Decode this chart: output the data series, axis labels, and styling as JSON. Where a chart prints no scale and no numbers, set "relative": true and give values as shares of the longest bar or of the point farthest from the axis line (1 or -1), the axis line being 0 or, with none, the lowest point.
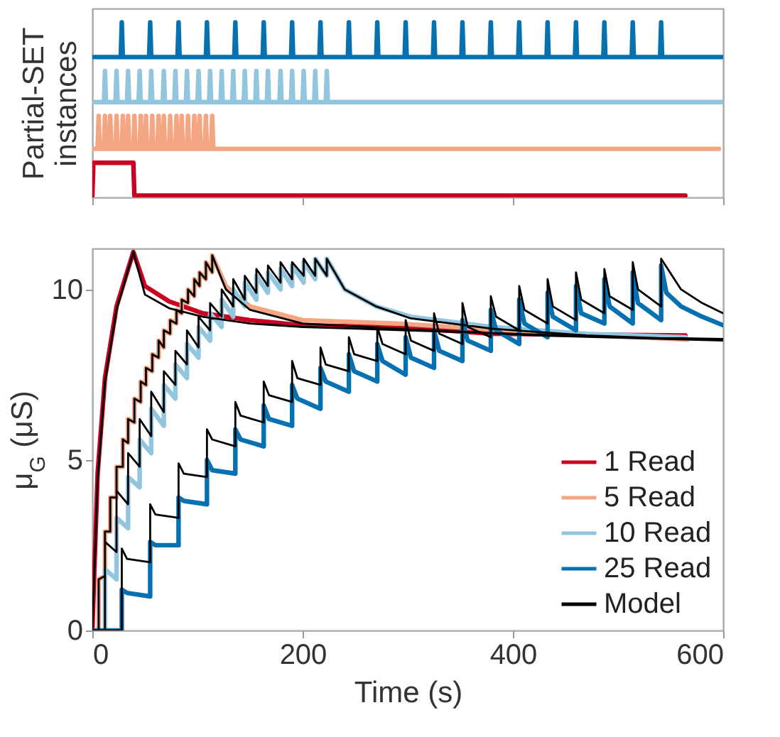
{
  "chart_data": [
    {
      "type": "line",
      "relative": true,
      "ylabel": "Partial-SET instances",
      "xlim": [
        0,
        600
      ],
      "xticks": [
        0,
        200,
        400,
        600
      ],
      "tick_labels": false,
      "series": [
        {
          "color": "#0571b0",
          "x": [
            0,
            27,
            28,
            29,
            54,
            55,
            56,
            81,
            82,
            83,
            108,
            109,
            110,
            135,
            136,
            137,
            162,
            163,
            164,
            189,
            190,
            191,
            216,
            217,
            218,
            243,
            244,
            245,
            270,
            271,
            272,
            297,
            298,
            299,
            324,
            325,
            326,
            351,
            352,
            353,
            378,
            379,
            380,
            405,
            406,
            407,
            432,
            433,
            434,
            459,
            460,
            461,
            486,
            487,
            488,
            513,
            514,
            515,
            540,
            541,
            542,
            600
          ],
          "values": [
            0.8,
            0.8,
            1,
            0.8,
            0.8,
            1,
            0.8,
            0.8,
            1,
            0.8,
            0.8,
            1,
            0.8,
            0.8,
            1,
            0.8,
            0.8,
            1,
            0.8,
            0.8,
            1,
            0.8,
            0.8,
            1,
            0.8,
            0.8,
            1,
            0.8,
            0.8,
            1,
            0.8,
            0.8,
            1,
            0.8,
            0.8,
            1,
            0.8,
            0.8,
            1,
            0.8,
            0.8,
            1,
            0.8,
            0.8,
            1,
            0.8,
            0.8,
            1,
            0.8,
            0.8,
            1,
            0.8,
            0.8,
            1,
            0.8,
            0.8,
            1,
            0.8,
            0.8,
            1,
            0.8,
            0.8
          ]
        },
        {
          "color": "#92c5de",
          "x": [
            0,
            11,
            12,
            13,
            22,
            23,
            24,
            33,
            34,
            35,
            44,
            45,
            46,
            55,
            56,
            57,
            67,
            68,
            69,
            78,
            79,
            80,
            89,
            90,
            91,
            100,
            101,
            102,
            111,
            112,
            113,
            122,
            123,
            124,
            133,
            134,
            135,
            144,
            145,
            146,
            155,
            156,
            157,
            166,
            167,
            168,
            178,
            179,
            180,
            189,
            190,
            191,
            200,
            201,
            202,
            211,
            212,
            213,
            222,
            223,
            224,
            600
          ],
          "values": [
            0.54,
            0.54,
            0.72,
            0.54,
            0.54,
            0.72,
            0.54,
            0.54,
            0.72,
            0.54,
            0.54,
            0.72,
            0.54,
            0.54,
            0.72,
            0.54,
            0.54,
            0.72,
            0.54,
            0.54,
            0.72,
            0.54,
            0.54,
            0.72,
            0.54,
            0.54,
            0.72,
            0.54,
            0.54,
            0.72,
            0.54,
            0.54,
            0.72,
            0.54,
            0.54,
            0.72,
            0.54,
            0.54,
            0.72,
            0.54,
            0.54,
            0.72,
            0.54,
            0.54,
            0.72,
            0.54,
            0.54,
            0.72,
            0.54,
            0.54,
            0.72,
            0.54,
            0.54,
            0.72,
            0.54,
            0.54,
            0.72,
            0.54,
            0.54,
            0.72,
            0.54,
            0.54
          ]
        },
        {
          "color": "#f4a582",
          "x": [
            0,
            5,
            6,
            7,
            11,
            12,
            13,
            16,
            17,
            18,
            22,
            23,
            24,
            28,
            29,
            30,
            33,
            34,
            35,
            39,
            40,
            41,
            45,
            46,
            47,
            50,
            51,
            52,
            56,
            57,
            58,
            62,
            63,
            64,
            67,
            68,
            69,
            73,
            74,
            75,
            79,
            80,
            81,
            84,
            85,
            86,
            90,
            91,
            92,
            96,
            97,
            98,
            101,
            102,
            103,
            107,
            108,
            109,
            113,
            114,
            115,
            596
          ],
          "values": [
            0.27,
            0.27,
            0.46,
            0.27,
            0.27,
            0.46,
            0.27,
            0.27,
            0.46,
            0.27,
            0.27,
            0.46,
            0.27,
            0.27,
            0.46,
            0.27,
            0.27,
            0.46,
            0.27,
            0.27,
            0.46,
            0.27,
            0.27,
            0.46,
            0.27,
            0.27,
            0.46,
            0.27,
            0.27,
            0.46,
            0.27,
            0.27,
            0.46,
            0.27,
            0.27,
            0.46,
            0.27,
            0.27,
            0.46,
            0.27,
            0.27,
            0.46,
            0.27,
            0.27,
            0.46,
            0.27,
            0.27,
            0.46,
            0.27,
            0.27,
            0.46,
            0.27,
            0.27,
            0.46,
            0.27,
            0.27,
            0.46,
            0.27,
            0.27,
            0.46,
            0.27,
            0.27
          ]
        },
        {
          "color": "#ca0020",
          "x": [
            0,
            1,
            39,
            40,
            564
          ],
          "values": [
            0,
            0.19,
            0.19,
            0,
            0
          ]
        }
      ]
    },
    {
      "type": "line",
      "xlabel": "Time (s)",
      "ylabel": "μ$_{G}$ (μS)",
      "xlim": [
        0,
        600
      ],
      "xticks": [
        0,
        200,
        400,
        600
      ],
      "ylim": [
        0,
        11.2
      ],
      "yticks": [
        0,
        5,
        10
      ],
      "legend": "bottom right",
      "series": [
        {
          "name": "1 Read",
          "color": "#ca0020",
          "x": [
            0,
            5,
            12,
            23,
            39,
            50,
            73,
            105,
            150,
            200,
            290,
            380,
            564
          ],
          "values": [
            0,
            4.6,
            7.4,
            9.5,
            11.1,
            10.1,
            9.65,
            9.3,
            9.1,
            8.95,
            8.9,
            8.7,
            8.65
          ]
        },
        {
          "name": "5 Read",
          "color": "#f4a582",
          "x": [
            0,
            6,
            6,
            12,
            12,
            17,
            17,
            23,
            23,
            29,
            29,
            34,
            34,
            40,
            40,
            46,
            46,
            51,
            51,
            57,
            57,
            63,
            63,
            68,
            68,
            74,
            74,
            80,
            80,
            85,
            85,
            91,
            91,
            97,
            97,
            102,
            102,
            108,
            108,
            114,
            114,
            127,
            150,
            200,
            290,
            425,
            566
          ],
          "values": [
            0,
            0,
            1.5,
            1.6,
            2.9,
            2.9,
            3.9,
            3.9,
            4.8,
            4.8,
            5.6,
            5.5,
            6.2,
            6.1,
            6.8,
            6.7,
            7.3,
            7.2,
            7.7,
            7.6,
            8.1,
            8.0,
            8.5,
            8.3,
            8.8,
            8.7,
            9.1,
            9.0,
            9.4,
            9.3,
            9.7,
            9.6,
            10.0,
            9.8,
            10.3,
            10.1,
            10.5,
            10.3,
            10.8,
            10.5,
            11.0,
            10.1,
            9.5,
            9.1,
            9.0,
            8.74,
            8.53
          ]
        },
        {
          "name": "10 Read",
          "color": "#92c5de",
          "x": [
            0,
            12,
            12,
            23,
            23,
            34,
            34,
            45,
            45,
            56,
            56,
            68,
            68,
            79,
            79,
            90,
            90,
            101,
            101,
            112,
            112,
            123,
            123,
            134,
            134,
            145,
            145,
            156,
            156,
            167,
            167,
            179,
            179,
            190,
            190,
            201,
            201,
            212,
            212,
            223,
            223,
            240,
            270,
            303,
            380,
            470,
            564
          ],
          "values": [
            0,
            0,
            1.8,
            1.5,
            3.3,
            3.0,
            4.5,
            4.2,
            5.6,
            5.2,
            6.5,
            6.0,
            7.2,
            6.8,
            7.8,
            7.4,
            8.4,
            8.0,
            8.9,
            8.5,
            9.3,
            8.9,
            9.7,
            9.2,
            10.0,
            9.5,
            10.2,
            9.7,
            10.4,
            9.9,
            10.5,
            10.0,
            10.6,
            10.1,
            10.7,
            10.2,
            10.8,
            10.3,
            10.9,
            10.4,
            10.9,
            10.0,
            9.5,
            9.2,
            8.9,
            8.7,
            8.6
          ]
        },
        {
          "name": "25 Read",
          "color": "#0571b0",
          "x": [
            0,
            28,
            28,
            33,
            55,
            55,
            60,
            82,
            82,
            87,
            109,
            109,
            114,
            136,
            136,
            141,
            163,
            163,
            168,
            190,
            190,
            195,
            217,
            217,
            222,
            244,
            244,
            249,
            271,
            271,
            276,
            298,
            298,
            303,
            325,
            325,
            330,
            352,
            352,
            357,
            379,
            379,
            384,
            406,
            406,
            411,
            433,
            433,
            438,
            460,
            460,
            465,
            487,
            487,
            492,
            514,
            514,
            519,
            541,
            541,
            546,
            560,
            580,
            600
          ],
          "values": [
            0,
            0,
            1.2,
            1.1,
            1.0,
            2.6,
            2.5,
            2.5,
            3.9,
            3.8,
            3.7,
            5.0,
            4.7,
            4.6,
            5.9,
            5.6,
            5.4,
            6.6,
            6.2,
            6.0,
            7.2,
            6.8,
            6.5,
            7.7,
            7.3,
            7.0,
            8.1,
            7.6,
            7.3,
            8.4,
            7.9,
            7.5,
            8.6,
            8.0,
            7.7,
            8.8,
            8.2,
            7.9,
            9.1,
            8.5,
            8.2,
            9.4,
            8.8,
            8.4,
            9.7,
            9.0,
            8.6,
            9.9,
            9.2,
            8.8,
            10.1,
            9.3,
            9.0,
            10.3,
            9.5,
            9.0,
            10.5,
            9.6,
            9.1,
            10.7,
            9.9,
            9.5,
            9.2,
            8.95
          ]
        },
        {
          "name": "Model",
          "color": "#000000",
          "x": [
            0,
            5,
            12,
            23,
            39,
            50,
            73,
            105,
            150,
            200,
            300,
            400,
            500,
            600,
            null,
            0,
            6,
            6,
            12,
            12,
            17,
            17,
            23,
            23,
            29,
            29,
            34,
            34,
            40,
            40,
            46,
            46,
            51,
            51,
            57,
            57,
            63,
            63,
            68,
            68,
            74,
            74,
            80,
            80,
            85,
            85,
            91,
            91,
            97,
            97,
            102,
            102,
            108,
            108,
            114,
            114,
            127,
            150,
            200,
            290,
            425,
            600,
            null,
            0,
            12,
            12,
            23,
            23,
            34,
            34,
            45,
            45,
            56,
            56,
            68,
            68,
            79,
            79,
            90,
            90,
            101,
            101,
            112,
            112,
            123,
            123,
            134,
            134,
            145,
            145,
            156,
            156,
            167,
            167,
            179,
            179,
            190,
            190,
            201,
            201,
            212,
            212,
            223,
            223,
            240,
            270,
            303,
            380,
            470,
            600,
            null,
            0,
            28,
            28,
            33,
            55,
            55,
            60,
            82,
            82,
            87,
            109,
            109,
            114,
            136,
            136,
            141,
            163,
            163,
            168,
            190,
            190,
            195,
            217,
            217,
            222,
            244,
            244,
            249,
            271,
            271,
            276,
            298,
            298,
            303,
            325,
            325,
            330,
            352,
            352,
            357,
            379,
            379,
            384,
            406,
            406,
            411,
            433,
            433,
            438,
            460,
            460,
            465,
            487,
            487,
            492,
            514,
            514,
            519,
            541,
            541,
            560,
            580,
            600
          ],
          "values": [
            0,
            4.4,
            7.3,
            9.4,
            11.1,
            9.85,
            9.45,
            9.2,
            9.0,
            8.9,
            8.8,
            8.7,
            8.6,
            8.55,
            null,
            0,
            0,
            1.5,
            1.6,
            2.9,
            2.9,
            3.9,
            3.9,
            4.8,
            4.8,
            5.6,
            5.5,
            6.2,
            6.1,
            6.8,
            6.7,
            7.3,
            7.2,
            7.7,
            7.6,
            8.1,
            8.0,
            8.5,
            8.3,
            8.8,
            8.7,
            9.1,
            9.0,
            9.4,
            9.3,
            9.7,
            9.6,
            10.0,
            9.8,
            10.3,
            10.1,
            10.5,
            10.3,
            10.8,
            10.5,
            11.0,
            10.0,
            9.4,
            9.0,
            8.85,
            8.65,
            8.5,
            null,
            0,
            0,
            2.6,
            2.3,
            4.1,
            3.7,
            5.2,
            4.8,
            6.2,
            5.7,
            7.0,
            6.4,
            7.6,
            7.2,
            8.2,
            7.8,
            8.8,
            8.3,
            9.2,
            8.8,
            9.6,
            9.2,
            10.0,
            9.5,
            10.3,
            9.7,
            10.4,
            9.9,
            10.6,
            10.1,
            10.7,
            10.2,
            10.8,
            10.3,
            10.8,
            10.4,
            10.9,
            10.4,
            10.9,
            10.4,
            10.9,
            10.0,
            9.5,
            9.15,
            8.85,
            8.65,
            8.5,
            null,
            0,
            0,
            2.4,
            2.1,
            2.0,
            3.7,
            3.4,
            3.3,
            4.9,
            4.6,
            4.5,
            5.9,
            5.6,
            5.4,
            6.7,
            6.3,
            6.1,
            7.3,
            6.9,
            6.7,
            7.9,
            7.4,
            7.2,
            8.3,
            7.8,
            7.6,
            8.6,
            8.1,
            7.9,
            8.9,
            8.4,
            8.1,
            9.1,
            8.5,
            8.2,
            9.3,
            8.7,
            8.4,
            9.6,
            8.9,
            8.6,
            9.8,
            9.2,
            8.8,
            10.1,
            9.4,
            9.0,
            10.3,
            9.5,
            9.1,
            10.5,
            9.7,
            9.3,
            10.6,
            9.8,
            9.4,
            10.8,
            10.0,
            9.5,
            10.9,
            10.0,
            9.6,
            9.3
          ]
        }
      ]
    }
  ]
}
